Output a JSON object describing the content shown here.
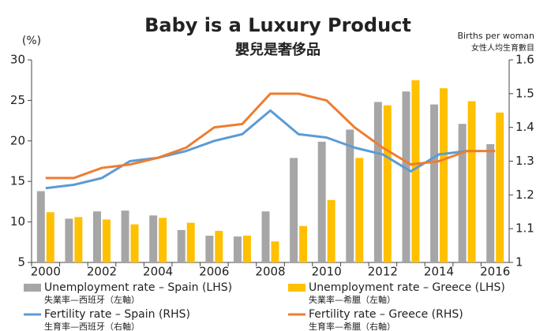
{
  "chart_data": {
    "type": "bar",
    "title": "Baby is a Luxury Product",
    "subtitle": "嬰兒是奢侈品",
    "ylabel": "(%)",
    "y2label": "Births per woman",
    "y2label_zh": "女性人均生育數目",
    "categories": [
      "2000",
      null,
      "2002",
      null,
      "2004",
      null,
      "2006",
      null,
      "2008",
      null,
      "2010",
      null,
      "2012",
      null,
      "2014",
      null,
      "2016"
    ],
    "ylim": [
      5,
      30
    ],
    "yticks": [
      5,
      10,
      15,
      20,
      25,
      30
    ],
    "y2lim": [
      1,
      1.6
    ],
    "y2ticks": [
      1,
      1.1,
      1.2,
      1.3,
      1.4,
      1.5,
      1.6
    ],
    "series": [
      {
        "name": "Unemployment rate – Spain (LHS)",
        "label_zh": "失業率—西班牙（左軸）",
        "type": "bar",
        "color": "#a6a6a6",
        "values": [
          13.8,
          10.4,
          11.3,
          11.4,
          10.8,
          9.0,
          8.3,
          8.2,
          11.3,
          17.9,
          19.9,
          21.4,
          24.8,
          26.1,
          24.5,
          22.1,
          19.6
        ]
      },
      {
        "name": "Unemployment rate – Greece (LHS)",
        "label_zh": "失業率—希臘（左軸）",
        "type": "bar",
        "color": "#ffc000",
        "values": [
          11.2,
          10.6,
          10.3,
          9.7,
          10.5,
          9.9,
          8.9,
          8.3,
          7.6,
          9.5,
          12.7,
          17.9,
          24.4,
          27.5,
          26.5,
          24.9,
          23.5
        ]
      },
      {
        "name": "Fertility rate – Spain (RHS)",
        "label_zh": "生育率—西班牙（右軸）",
        "type": "line",
        "axis": "y2",
        "color": "#5b9bd5",
        "values": [
          1.22,
          1.23,
          1.25,
          1.3,
          1.31,
          1.33,
          1.36,
          1.38,
          1.45,
          1.38,
          1.37,
          1.34,
          1.32,
          1.27,
          1.32,
          1.33,
          null
        ]
      },
      {
        "name": "Fertility rate – Greece (RHS)",
        "label_zh": "生育率—希臘（右軸）",
        "type": "line",
        "axis": "y2",
        "color": "#ed7d31",
        "values": [
          1.25,
          1.25,
          1.28,
          1.29,
          1.31,
          1.34,
          1.4,
          1.41,
          1.5,
          1.5,
          1.48,
          1.4,
          1.34,
          1.29,
          1.3,
          1.33,
          1.33
        ]
      }
    ]
  }
}
